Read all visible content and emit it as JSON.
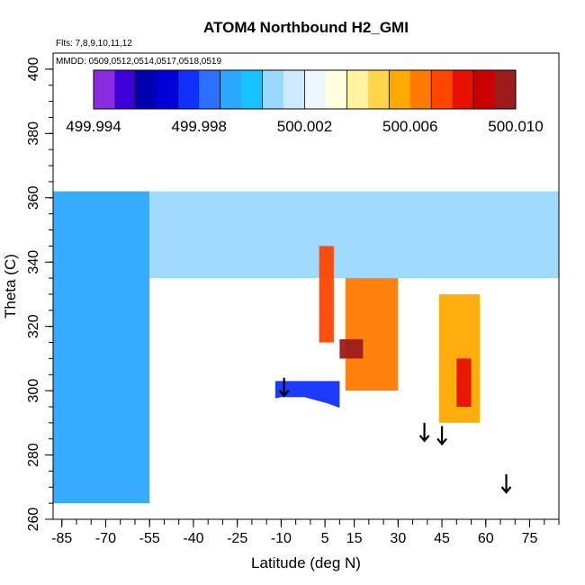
{
  "chart_data": {
    "type": "heatmap",
    "title": "ATOM4 Northbound H2_GMI",
    "flights_text": "Flts: 7,8,9,10,11,12",
    "dates_text": "MMDD: 0509,0512,0514,0517,0518,0519",
    "xlabel": "Latitude (deg N)",
    "ylabel": "Theta (C)",
    "xlim": [
      -88,
      85
    ],
    "ylim": [
      260,
      405
    ],
    "x_ticks": [
      -85,
      -70,
      -55,
      -40,
      -25,
      -10,
      5,
      15,
      30,
      45,
      60,
      75
    ],
    "y_ticks": [
      260,
      280,
      300,
      320,
      340,
      360,
      380,
      400
    ],
    "colorbar": {
      "min": 499.994,
      "max": 500.01,
      "tick_values": [
        499.994,
        499.998,
        500.002,
        500.006,
        500.01
      ],
      "tick_labels": [
        "499.994",
        "499.998",
        "500.002",
        "500.006",
        "500.010"
      ],
      "colors": [
        "#8a2be2",
        "#3b00d6",
        "#0000b0",
        "#0000d8",
        "#1030ff",
        "#2d70ff",
        "#2ca6ff",
        "#16c3ff",
        "#99d8ff",
        "#cde9ff",
        "#eef6ff",
        "#fffde0",
        "#fff3a0",
        "#ffd44a",
        "#ffaa00",
        "#ff7a00",
        "#ff4500",
        "#e81000",
        "#cc0000",
        "#9e1b1b"
      ]
    },
    "features": [
      {
        "name": "southern-tropospheric-plume",
        "lat": [
          -88,
          -55
        ],
        "theta": [
          265,
          362
        ],
        "value": 499.9995
      },
      {
        "name": "upper-background",
        "lat": [
          -55,
          85
        ],
        "theta": [
          335,
          362
        ],
        "value": 500.0005
      },
      {
        "name": "tropical-maximum",
        "lat": [
          12,
          30
        ],
        "theta": [
          300,
          335
        ],
        "value": 500.0065
      },
      {
        "name": "tropical-core",
        "lat": [
          10,
          18
        ],
        "theta": [
          310,
          316
        ],
        "value": 500.0095
      },
      {
        "name": "upper-tropical-streak",
        "lat": [
          3,
          8
        ],
        "theta": [
          315,
          345
        ],
        "value": 500.0075
      },
      {
        "name": "northern-maximum",
        "lat": [
          44,
          58
        ],
        "theta": [
          290,
          330
        ],
        "value": 500.0055
      },
      {
        "name": "northern-core",
        "lat": [
          50,
          55
        ],
        "theta": [
          295,
          310
        ],
        "value": 500.0078
      },
      {
        "name": "lower-tropical-minimum",
        "lat": [
          -12,
          10
        ],
        "theta": [
          293,
          303
        ],
        "value": 499.9975
      }
    ],
    "surface_boundary": {
      "lat": [
        -88,
        -55,
        -54,
        -53,
        -44,
        -40,
        -27,
        -20,
        -10,
        -2,
        6,
        12,
        18,
        24,
        30,
        36,
        41,
        46,
        50,
        55,
        62,
        66,
        71,
        76,
        81,
        85
      ],
      "theta": [
        265,
        265,
        265,
        278,
        278,
        287,
        295,
        296,
        298,
        298,
        296,
        294,
        292,
        290,
        289,
        288,
        287,
        286,
        285,
        284,
        283,
        282,
        280,
        278,
        276,
        275
      ]
    },
    "arrows": [
      {
        "lat": -9,
        "theta": 304
      },
      {
        "lat": 39,
        "theta": 290
      },
      {
        "lat": 45,
        "theta": 289
      },
      {
        "lat": 67,
        "theta": 274
      }
    ]
  }
}
